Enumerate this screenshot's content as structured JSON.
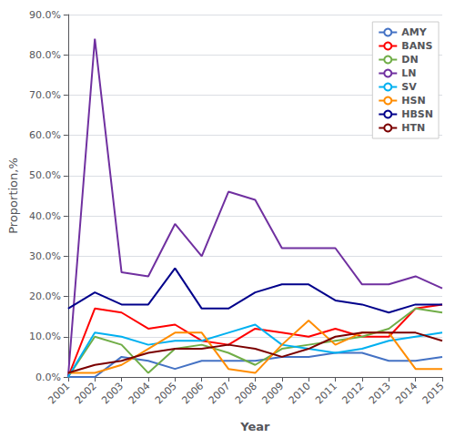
{
  "chart_data": {
    "type": "line",
    "xlabel": "Year",
    "ylabel": "Proportion,%",
    "x": [
      2001,
      2002,
      2003,
      2004,
      2005,
      2006,
      2007,
      2008,
      2009,
      2010,
      2011,
      2012,
      2013,
      2014,
      2015
    ],
    "series": [
      {
        "name": "AMY",
        "color": "#4472C4",
        "values": [
          0.0,
          0.0,
          0.05,
          0.04,
          0.02,
          0.04,
          0.04,
          0.04,
          0.05,
          0.05,
          0.06,
          0.06,
          0.04,
          0.04,
          0.05
        ]
      },
      {
        "name": "BANS",
        "color": "#FF0000",
        "values": [
          0.0,
          0.17,
          0.16,
          0.12,
          0.13,
          0.09,
          0.08,
          0.12,
          0.11,
          0.1,
          0.12,
          0.1,
          0.1,
          0.17,
          0.18
        ]
      },
      {
        "name": "DN",
        "color": "#70AD47",
        "values": [
          0.0,
          0.1,
          0.08,
          0.01,
          0.07,
          0.08,
          0.06,
          0.03,
          0.07,
          0.08,
          0.09,
          0.1,
          0.12,
          0.17,
          0.16
        ]
      },
      {
        "name": "LN",
        "color": "#7030A0",
        "values": [
          0.0,
          0.84,
          0.26,
          0.25,
          0.38,
          0.3,
          0.46,
          0.44,
          0.32,
          0.32,
          0.32,
          0.23,
          0.23,
          0.25,
          0.22
        ]
      },
      {
        "name": "SV",
        "color": "#00B0F0",
        "values": [
          0.0,
          0.11,
          0.1,
          0.08,
          0.09,
          0.09,
          0.11,
          0.13,
          0.08,
          0.07,
          0.06,
          0.07,
          0.09,
          0.1,
          0.11
        ]
      },
      {
        "name": "HSN",
        "color": "#FF8C00",
        "values": [
          0.01,
          0.01,
          0.03,
          0.07,
          0.11,
          0.11,
          0.02,
          0.01,
          0.08,
          0.14,
          0.08,
          0.11,
          0.11,
          0.02,
          0.02
        ]
      },
      {
        "name": "HBSN",
        "color": "#00008B",
        "values": [
          0.17,
          0.21,
          0.18,
          0.18,
          0.27,
          0.17,
          0.17,
          0.21,
          0.23,
          0.23,
          0.19,
          0.18,
          0.16,
          0.18,
          0.18
        ]
      },
      {
        "name": "HTN",
        "color": "#7B0000",
        "values": [
          0.01,
          0.03,
          0.04,
          0.06,
          0.07,
          0.07,
          0.08,
          0.07,
          0.05,
          0.07,
          0.1,
          0.11,
          0.11,
          0.11,
          0.09
        ]
      }
    ],
    "xlim": [
      2001,
      2015
    ],
    "xticks": [
      2001,
      2002,
      2003,
      2004,
      2005,
      2006,
      2007,
      2008,
      2009,
      2010,
      2011,
      2012,
      2013,
      2014,
      2015
    ],
    "ylim": [
      0.0,
      0.9
    ],
    "yticks": [
      {
        "value": 0.0,
        "label": "0.0%"
      },
      {
        "value": 0.1,
        "label": "10.0%"
      },
      {
        "value": 0.2,
        "label": "20.0%"
      },
      {
        "value": 0.3,
        "label": "30.0%"
      },
      {
        "value": 0.4,
        "label": "40.0%"
      },
      {
        "value": 0.5,
        "label": "50.0%"
      },
      {
        "value": 0.6,
        "label": "60.0%"
      },
      {
        "value": 0.7,
        "label": "70.0%"
      },
      {
        "value": 0.8,
        "label": "80.0%"
      },
      {
        "value": 0.9,
        "label": "90.0%"
      }
    ],
    "grid": true,
    "legend": "upper right"
  }
}
